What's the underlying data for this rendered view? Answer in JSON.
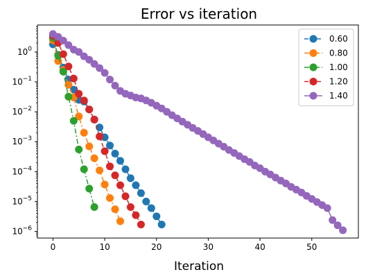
{
  "chart_data": {
    "type": "line",
    "title": "Error vs iteration",
    "xlabel": "Iteration",
    "ylabel": "",
    "yscale": "log",
    "xlim": [
      -3,
      59
    ],
    "ylim": [
      6e-07,
      8.0
    ],
    "x_ticks": [
      0,
      10,
      20,
      30,
      40,
      50
    ],
    "x_tick_labels": [
      "0",
      "10",
      "20",
      "30",
      "40",
      "50"
    ],
    "y_ticks": [
      1e-06,
      1e-05,
      0.0001,
      0.001,
      0.01,
      0.1,
      1
    ],
    "y_tick_labels": [
      {
        "base": "10",
        "exp": "−6"
      },
      {
        "base": "10",
        "exp": "−5"
      },
      {
        "base": "10",
        "exp": "−4"
      },
      {
        "base": "10",
        "exp": "−3"
      },
      {
        "base": "10",
        "exp": "−2"
      },
      {
        "base": "10",
        "exp": "−1"
      },
      {
        "base": "10",
        "exp": "0"
      }
    ],
    "legend_position": "top-right",
    "grid": false,
    "series": [
      {
        "name": "0.60",
        "color": "#1f77b4",
        "line_style": "dashed",
        "x": [
          0,
          1,
          2,
          3,
          4,
          5,
          6,
          7,
          8,
          9,
          10,
          11,
          12,
          13,
          14,
          15,
          16,
          17,
          18,
          19,
          20,
          21
        ],
        "y": [
          1.8,
          0.8,
          0.3,
          0.12,
          0.055,
          0.025,
          0.022,
          0.012,
          0.0055,
          0.003,
          0.0014,
          0.00075,
          0.0004,
          0.00023,
          0.00012,
          6e-05,
          3.5e-05,
          1.9e-05,
          1e-05,
          6e-06,
          3.2e-06,
          1.7e-06
        ]
      },
      {
        "name": "0.80",
        "color": "#ff7f0e",
        "line_style": "dashdot",
        "x": [
          0,
          1,
          2,
          3,
          4,
          5,
          6,
          7,
          8,
          9,
          10,
          11,
          12,
          13
        ],
        "y": [
          2.5,
          0.5,
          0.25,
          0.08,
          0.03,
          0.007,
          0.002,
          0.0007,
          0.00028,
          0.00011,
          3.7e-05,
          1.3e-05,
          5.5e-06,
          2.2e-06
        ]
      },
      {
        "name": "1.00",
        "color": "#2ca02c",
        "line_style": "dashdot",
        "x": [
          0,
          1,
          2,
          3,
          4,
          5,
          6,
          7,
          8
        ],
        "y": [
          3.0,
          0.75,
          0.22,
          0.032,
          0.005,
          0.00055,
          0.00012,
          2.7e-05,
          6.5e-06
        ]
      },
      {
        "name": "1.20",
        "color": "#d62728",
        "line_style": "dashed",
        "x": [
          0,
          1,
          2,
          3,
          4,
          5,
          6,
          7,
          8,
          9,
          10,
          11,
          12,
          13,
          14,
          15,
          16,
          17
        ],
        "y": [
          3.5,
          2.0,
          0.85,
          0.33,
          0.13,
          0.04,
          0.024,
          0.012,
          0.0055,
          0.0015,
          0.00048,
          0.00015,
          7.5e-05,
          3.5e-05,
          1.5e-05,
          6.5e-06,
          3.5e-06,
          1.7e-06
        ]
      },
      {
        "name": "1.40",
        "color": "#9467bd",
        "line_style": "solid",
        "x": [
          0,
          1,
          2,
          3,
          4,
          5,
          6,
          7,
          8,
          9,
          10,
          11,
          12,
          13,
          14,
          15,
          16,
          17,
          18,
          19,
          20,
          21,
          22,
          23,
          24,
          25,
          26,
          27,
          28,
          29,
          30,
          31,
          32,
          33,
          34,
          35,
          36,
          37,
          38,
          39,
          40,
          41,
          42,
          43,
          44,
          45,
          46,
          47,
          48,
          49,
          50,
          51,
          52,
          53,
          54,
          55,
          56
        ],
        "y": [
          4.0,
          3.2,
          2.4,
          1.7,
          1.2,
          1.0,
          0.72,
          0.55,
          0.4,
          0.29,
          0.2,
          0.12,
          0.075,
          0.05,
          0.04,
          0.035,
          0.03,
          0.028,
          0.024,
          0.02,
          0.016,
          0.013,
          0.01,
          0.0077,
          0.006,
          0.0047,
          0.0037,
          0.0029,
          0.0023,
          0.0018,
          0.0014,
          0.0011,
          0.00086,
          0.00068,
          0.00053,
          0.00042,
          0.00033,
          0.00026,
          0.00021,
          0.00016,
          0.00013,
          0.0001,
          8e-05,
          6.3e-05,
          5e-05,
          4e-05,
          3.1e-05,
          2.5e-05,
          2e-05,
          1.55e-05,
          1.22e-05,
          9.6e-06,
          7.6e-06,
          6e-06,
          2.4e-06,
          1.6e-06,
          1.1e-06
        ]
      }
    ]
  }
}
